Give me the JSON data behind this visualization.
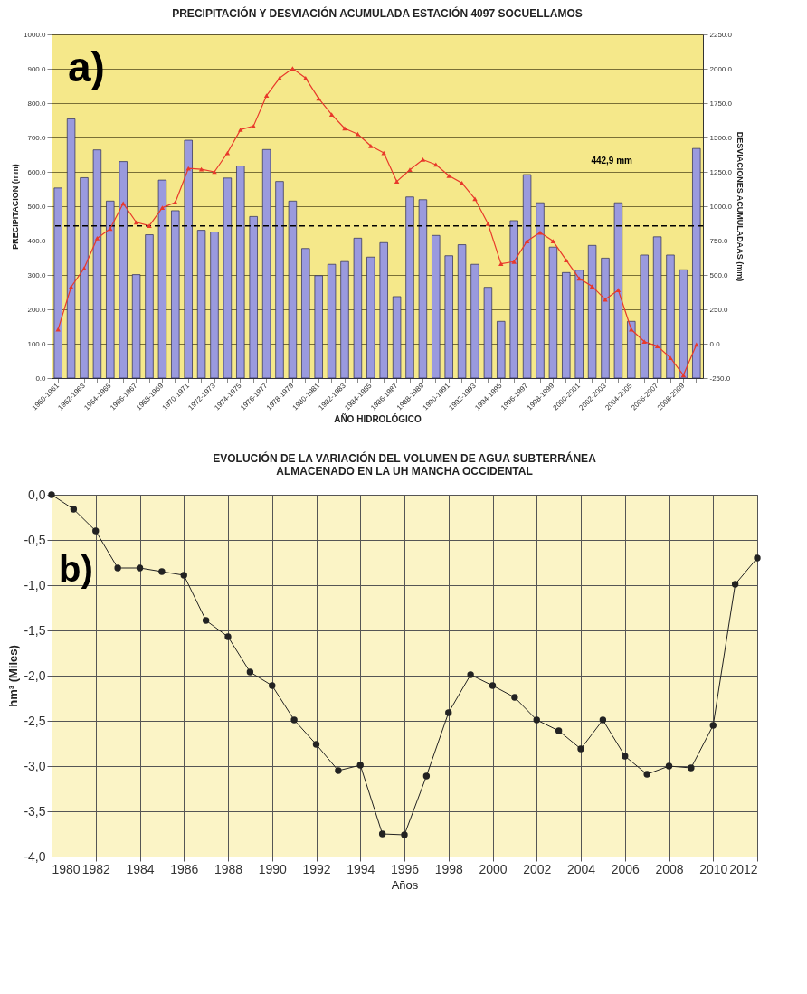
{
  "chart_data": [
    {
      "type": "bar",
      "title": "PRECIPITACIÓN Y DESVIACIÓN ACUMULADA ESTACIÓN 4097 SOCUELLAMOS",
      "xlabel": "AÑO HIDROLÓGICO",
      "ylabel": "PRECIPITACION (mm)",
      "y2label": "DESVIACIONES ACUMULADAAS (mm)",
      "categories": [
        "1960-1961",
        null,
        "1962-1963",
        null,
        "1964-1965",
        null,
        "1966-1967",
        null,
        "1968-1969",
        null,
        "1970-1971",
        null,
        "1972-1973",
        null,
        "1974-1975",
        null,
        "1976-1977",
        null,
        "1978-1979",
        null,
        "1980-1981",
        null,
        "1982-1983",
        null,
        "1984-1985",
        null,
        "1986-1987",
        null,
        "1988-1989",
        null,
        "1990-1991",
        null,
        "1992-1993",
        null,
        "1994-1995",
        null,
        "1996-1997",
        null,
        "1998-1999",
        null,
        "2000-2001",
        null,
        "2002-2003",
        null,
        "2004-2005",
        null,
        "2006-2007",
        null,
        "2008-2009",
        null
      ],
      "series": [
        {
          "type": "bar",
          "color": "#9a9ade",
          "values": [
            553,
            754,
            583,
            664,
            515,
            630,
            301,
            417,
            576,
            487,
            692,
            430,
            425,
            582,
            617,
            470,
            665,
            572,
            515,
            377,
            298,
            331,
            339,
            407,
            352,
            394,
            237,
            527,
            519,
            415,
            356,
            388,
            331,
            264,
            165,
            458,
            592,
            510,
            381,
            307,
            314,
            386,
            349,
            510,
            165,
            358,
            411,
            358,
            315,
            668
          ]
        },
        {
          "type": "line",
          "axis": "y2",
          "color": "#e8392b",
          "values": [
            104,
            413,
            549,
            767,
            837,
            1021,
            883,
            858,
            989,
            1028,
            1275,
            1269,
            1250,
            1388,
            1557,
            1583,
            1805,
            1932,
            2002,
            1932,
            1784,
            1667,
            1566,
            1525,
            1439,
            1388,
            1180,
            1265,
            1339,
            1303,
            1222,
            1169,
            1053,
            873,
            581,
            597,
            746,
            809,
            746,
            608,
            475,
            417,
            322,
            390,
            104,
            15,
            -17,
            -102,
            -229,
            -6
          ]
        }
      ],
      "ylim": [
        0,
        1000
      ],
      "yticks": [
        {
          "value": 0,
          "label": "0.0"
        },
        {
          "value": 100,
          "label": "100.0"
        },
        {
          "value": 200,
          "label": "200.0"
        },
        {
          "value": 300,
          "label": "300.0"
        },
        {
          "value": 400,
          "label": "400.0"
        },
        {
          "value": 500,
          "label": "500.0"
        },
        {
          "value": 600,
          "label": "600.0"
        },
        {
          "value": 700,
          "label": "700.0"
        },
        {
          "value": 800,
          "label": "800.0"
        },
        {
          "value": 900,
          "label": "900.0"
        },
        {
          "value": 1000,
          "label": "1000.0"
        }
      ],
      "y2lim": [
        -250,
        2250
      ],
      "y2ticks": [
        {
          "value": -250,
          "label": "-250.0"
        },
        {
          "value": 0,
          "label": "0.0"
        },
        {
          "value": 250,
          "label": "250.0"
        },
        {
          "value": 500,
          "label": "500.0"
        },
        {
          "value": 750,
          "label": "750.0"
        },
        {
          "value": 1000,
          "label": "1000.0"
        },
        {
          "value": 1250,
          "label": "1250.0"
        },
        {
          "value": 1500,
          "label": "1500.0"
        },
        {
          "value": 1750,
          "label": "1750.0"
        },
        {
          "value": 2000,
          "label": "2000.0"
        },
        {
          "value": 2250,
          "label": "2250.0"
        }
      ],
      "ref_lines": [
        {
          "axis": "y",
          "value": 442.9,
          "label": "442,9 mm",
          "line_style": "dashed",
          "color": "#000000"
        }
      ],
      "annotations": [
        "a)"
      ],
      "grid": "y",
      "marker": "triangle",
      "legend": false
    },
    {
      "type": "line",
      "title": "EVOLUCIÓN DE LA VARIACIÓN DEL VOLUMEN DE AGUA SUBTERRÁNEA\nALMACENADO EN LA UH MANCHA OCCIDENTAL",
      "xlabel": "Años",
      "ylabel": "hm³ (Miles)",
      "x": [
        1980,
        1981,
        1982,
        1983,
        1984,
        1985,
        1986,
        1987,
        1988,
        1989,
        1990,
        1991,
        1992,
        1993,
        1994,
        1995,
        1996,
        1997,
        1998,
        1999,
        2000,
        2001,
        2002,
        2003,
        2004,
        2005,
        2006,
        2007,
        2008,
        2009,
        2010,
        2011,
        2012
      ],
      "series": [
        {
          "color": "#222222",
          "values": [
            0,
            -0.16,
            -0.4,
            -0.81,
            -0.81,
            -0.85,
            -0.89,
            -1.39,
            -1.57,
            -1.96,
            -2.11,
            -2.49,
            -2.76,
            -3.05,
            -2.99,
            -3.75,
            -3.76,
            -3.11,
            -2.41,
            -1.99,
            -2.11,
            -2.24,
            -2.49,
            -2.61,
            -2.81,
            -2.49,
            -2.89,
            -3.09,
            -3.0,
            -3.02,
            -2.55,
            -0.99,
            -0.7
          ]
        }
      ],
      "xlim": [
        1980,
        2012
      ],
      "xticks": [
        1980,
        1982,
        1984,
        1986,
        1988,
        1990,
        1992,
        1994,
        1996,
        1998,
        2000,
        2002,
        2004,
        2006,
        2008,
        2010,
        2012
      ],
      "ylim": [
        -4,
        0
      ],
      "yticks": [
        {
          "value": -4,
          "label": "-4,0"
        },
        {
          "value": -3.5,
          "label": "-3,5"
        },
        {
          "value": -3,
          "label": "-3,0"
        },
        {
          "value": -2.5,
          "label": "-2,5"
        },
        {
          "value": -2,
          "label": "-2,0"
        },
        {
          "value": -1.5,
          "label": "-1,5"
        },
        {
          "value": -1,
          "label": "-1,0"
        },
        {
          "value": -0.5,
          "label": "-0,5"
        },
        {
          "value": 0,
          "label": "0,0"
        }
      ],
      "annotations": [
        "b)"
      ],
      "grid": true,
      "marker": "circle",
      "legend": false
    }
  ]
}
